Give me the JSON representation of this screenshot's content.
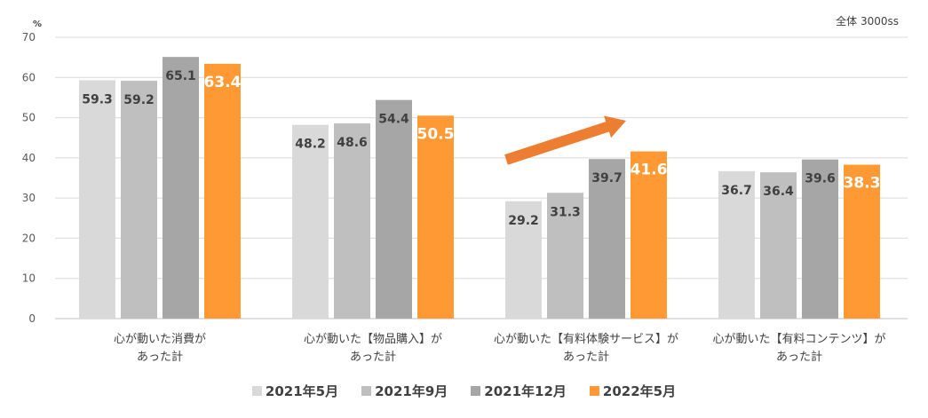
{
  "chart_data": {
    "type": "bar",
    "y_unit": "%",
    "note": "全体 3000ss",
    "ylim": [
      0,
      70
    ],
    "yticks": [
      0,
      10,
      20,
      30,
      40,
      50,
      60,
      70
    ],
    "categories": [
      [
        "心が動いた消費が",
        "あった計"
      ],
      [
        "心が動いた【物品購入】が",
        "あった計"
      ],
      [
        "心が動いた【有料体験サービス】が",
        "あった計"
      ],
      [
        "心が動いた【有料コンテンツ】が",
        "あった計"
      ]
    ],
    "series": [
      {
        "name": "2021年5月",
        "color": "#d9d9d9",
        "values": [
          59.3,
          48.2,
          29.2,
          36.7
        ]
      },
      {
        "name": "2021年9月",
        "color": "#bfbfbf",
        "values": [
          59.2,
          48.6,
          31.3,
          36.4
        ]
      },
      {
        "name": "2021年12月",
        "color": "#a6a6a6",
        "values": [
          65.1,
          54.4,
          39.7,
          39.6
        ]
      },
      {
        "name": "2022年5月",
        "color": "#ff9933",
        "values": [
          63.4,
          50.5,
          41.6,
          38.3
        ]
      }
    ],
    "grid": true,
    "legend_position": "bottom",
    "annotation": {
      "type": "arrow",
      "color": "#ed7d31",
      "category_index": 2
    }
  }
}
